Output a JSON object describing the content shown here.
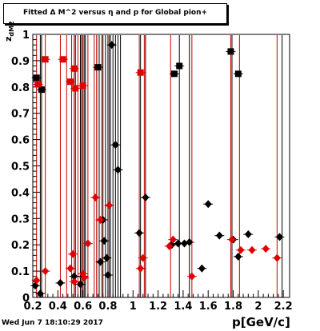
{
  "chart_data": {
    "type": "scatter",
    "title": "Fitted Δ M^2 versus η and p for Global pion+",
    "xlabel": "p[GeV/c]",
    "ylabel": "z",
    "ylabel_sub": "dM2",
    "timestamp": "Wed Jun  7 18:10:29 2017",
    "xlim": [
      0.2,
      2.25
    ],
    "ylim": [
      0,
      1
    ],
    "xticks": [
      "0.2",
      "0.4",
      "0.6",
      "0.8",
      "1",
      "1.2",
      "1.4",
      "1.6",
      "1.8",
      "2",
      "2.2"
    ],
    "xtick_values": [
      0.2,
      0.4,
      0.6,
      0.8,
      1.0,
      1.2,
      1.4,
      1.6,
      1.8,
      2.0,
      2.2
    ],
    "yticks": [
      "0",
      "0.1",
      "0.2",
      "0.3",
      "0.4",
      "0.5",
      "0.6",
      "0.7",
      "0.8",
      "0.9",
      "1"
    ],
    "ytick_values": [
      0,
      0.1,
      0.2,
      0.3,
      0.4,
      0.5,
      0.6,
      0.7,
      0.8,
      0.9,
      1.0
    ],
    "grid": false,
    "series": [
      {
        "color": "#000000",
        "marker": "square",
        "points": [
          [
            0.23,
            0.835
          ],
          [
            0.27,
            0.79
          ],
          [
            0.72,
            0.875
          ],
          [
            1.33,
            0.85
          ],
          [
            1.37,
            0.88
          ],
          [
            1.78,
            0.935
          ],
          [
            1.84,
            0.85
          ]
        ]
      },
      {
        "color": "#e00000",
        "marker": "square",
        "points": [
          [
            0.24,
            0.81
          ],
          [
            0.3,
            0.905
          ],
          [
            0.44,
            0.905
          ],
          [
            0.5,
            0.82
          ],
          [
            0.53,
            0.87
          ],
          [
            0.54,
            0.795
          ],
          [
            0.6,
            0.805
          ],
          [
            1.06,
            0.855
          ]
        ]
      },
      {
        "color": "#000000",
        "marker": "diamond",
        "points": [
          [
            0.22,
            0.045
          ],
          [
            0.26,
            0.015
          ],
          [
            0.42,
            0.055
          ],
          [
            0.53,
            0.08
          ],
          [
            0.58,
            0.05
          ],
          [
            0.6,
            0.08
          ],
          [
            0.74,
            0.135
          ],
          [
            0.76,
            0.295
          ],
          [
            0.77,
            0.215
          ],
          [
            0.79,
            0.15
          ],
          [
            0.8,
            0.085
          ],
          [
            0.83,
            0.96
          ],
          [
            0.86,
            0.58
          ],
          [
            0.88,
            0.485
          ],
          [
            1.05,
            0.245
          ],
          [
            1.1,
            0.38
          ],
          [
            1.31,
            0.2
          ],
          [
            1.36,
            0.205
          ],
          [
            1.41,
            0.205
          ],
          [
            1.45,
            0.21
          ],
          [
            1.55,
            0.11
          ],
          [
            1.6,
            0.355
          ],
          [
            1.69,
            0.235
          ],
          [
            1.8,
            0.22
          ],
          [
            1.84,
            0.155
          ],
          [
            1.92,
            0.24
          ],
          [
            2.17,
            0.23
          ]
        ]
      },
      {
        "color": "#e00000",
        "marker": "diamond",
        "points": [
          [
            0.23,
            0.065
          ],
          [
            0.3,
            0.1
          ],
          [
            0.5,
            0.11
          ],
          [
            0.52,
            0.165
          ],
          [
            0.53,
            0.06
          ],
          [
            0.6,
            0.09
          ],
          [
            0.61,
            0.075
          ],
          [
            0.64,
            0.205
          ],
          [
            0.7,
            0.38
          ],
          [
            0.74,
            0.295
          ],
          [
            0.81,
            0.35
          ],
          [
            1.06,
            0.11
          ],
          [
            1.08,
            0.15
          ],
          [
            1.29,
            0.195
          ],
          [
            1.32,
            0.22
          ],
          [
            1.47,
            0.08
          ],
          [
            1.79,
            0.22
          ],
          [
            1.86,
            0.18
          ],
          [
            1.95,
            0.18
          ],
          [
            2.06,
            0.185
          ],
          [
            2.15,
            0.15
          ]
        ]
      }
    ],
    "vlines": [
      {
        "color": "#000000",
        "x": [
          0.26,
          0.27,
          0.54,
          0.58,
          0.59,
          0.61,
          0.62,
          0.71,
          0.73,
          0.76,
          0.78,
          0.8,
          0.82,
          0.84,
          0.86,
          0.88,
          0.9,
          1.06,
          1.1,
          1.37,
          1.45,
          1.79,
          2.19
        ]
      },
      {
        "color": "#cc0000",
        "x": [
          0.23,
          0.3,
          0.42,
          0.47,
          0.51,
          0.53,
          0.56,
          0.6,
          0.64,
          0.69,
          0.71,
          0.75,
          0.81,
          1.05,
          1.09,
          1.3,
          1.47,
          1.78,
          1.85,
          2.15
        ]
      }
    ]
  }
}
